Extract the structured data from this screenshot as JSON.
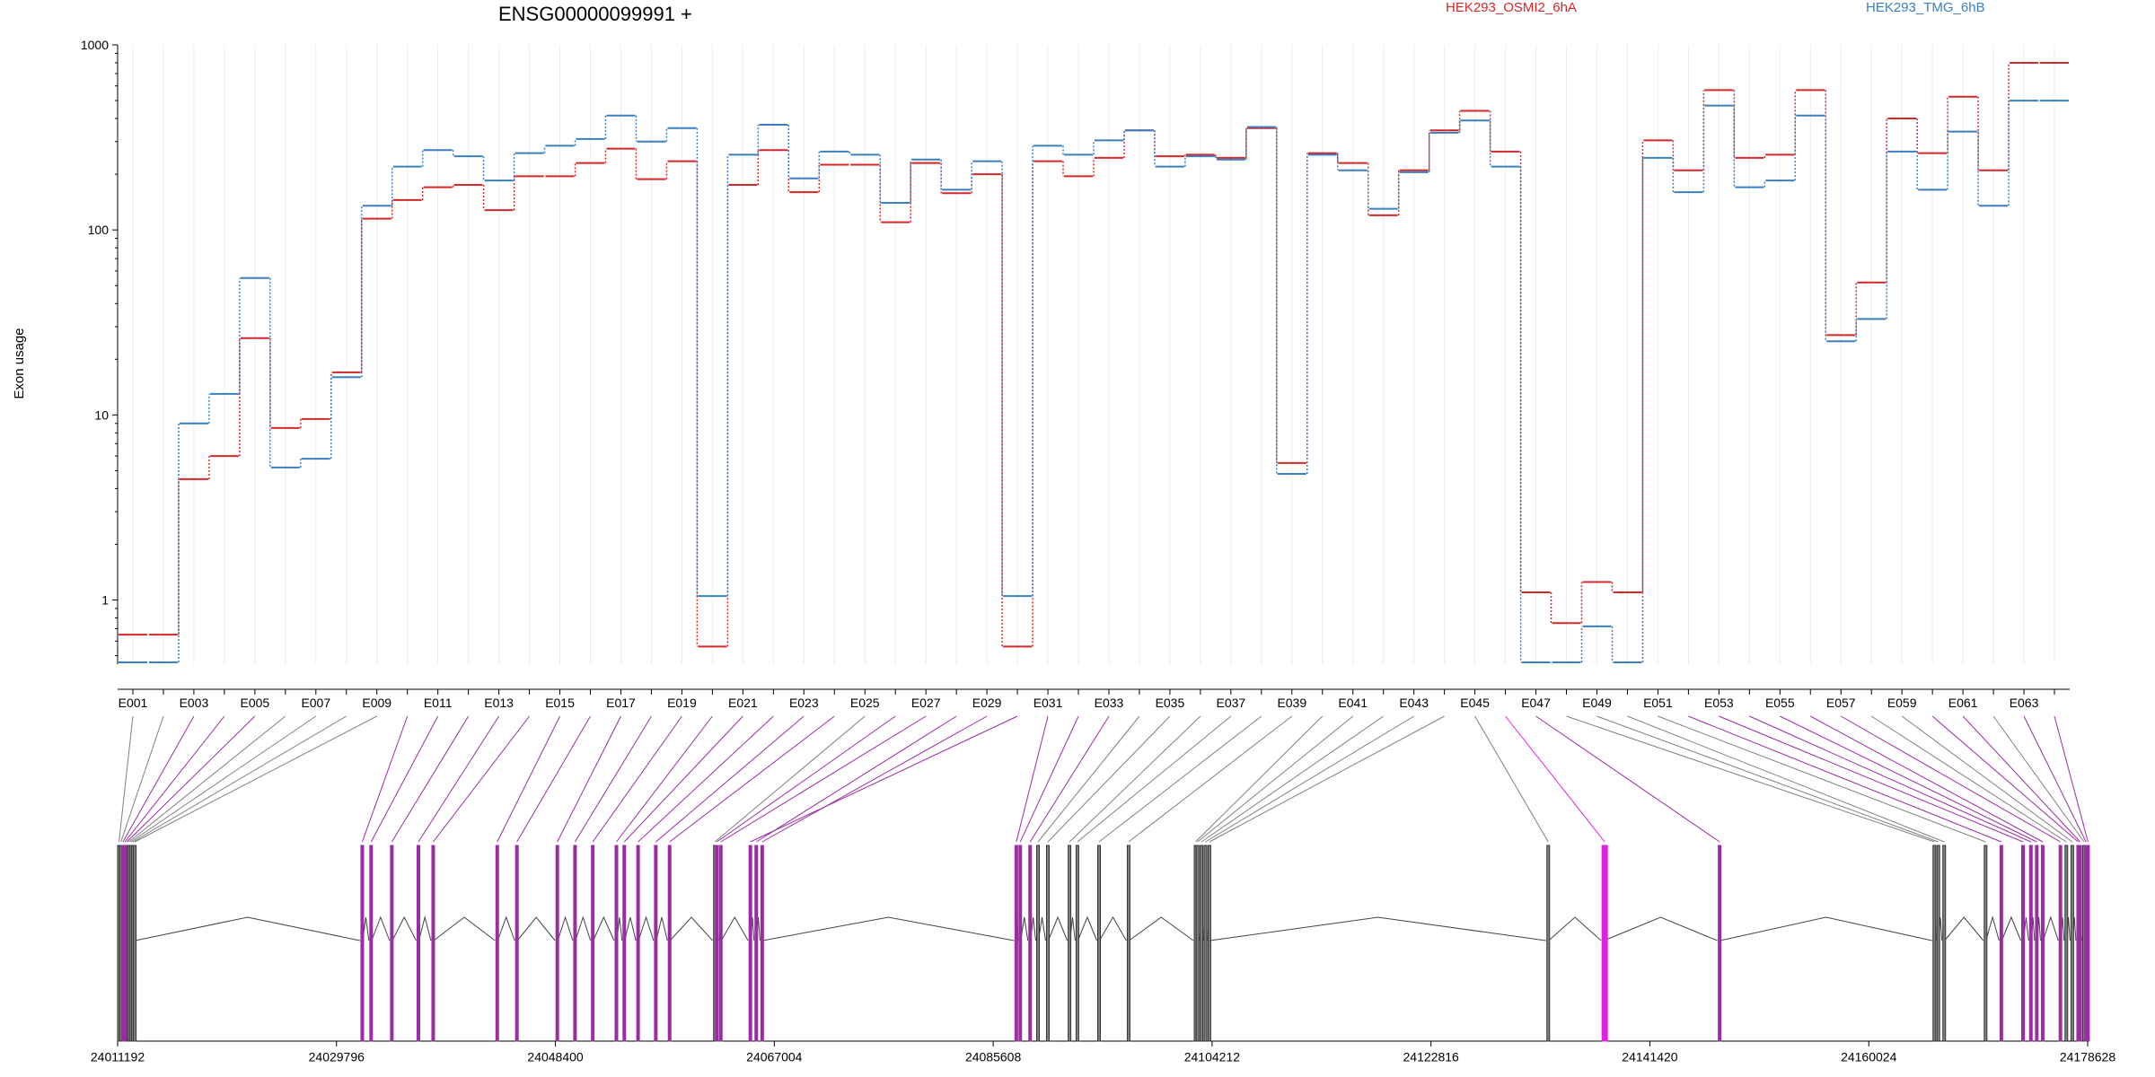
{
  "chart_data": {
    "type": "line",
    "title": "ENSG00000099991 +",
    "ylabel": "Exon usage",
    "xlabel": "",
    "yscale": "log",
    "ylim": [
      0.45,
      1000
    ],
    "y_ticks": [
      "1",
      "10",
      "100",
      "1000"
    ],
    "legend": {
      "placement": "top",
      "entries": [
        "HEK293_OSMI2_6hA",
        "HEK293_TMG_6hB"
      ]
    },
    "colors": {
      "HEK293_OSMI2_6hA": "#d62728",
      "HEK293_TMG_6hB": "#3a7fc0",
      "highlight": "#9b2ca3",
      "bright": "#e020e0",
      "plain": "#808080"
    },
    "categories": [
      "E001",
      "E002",
      "E003",
      "E004",
      "E005",
      "E006",
      "E007",
      "E008",
      "E009",
      "E010",
      "E011",
      "E012",
      "E013",
      "E014",
      "E015",
      "E016",
      "E017",
      "E018",
      "E019",
      "E020",
      "E021",
      "E022",
      "E023",
      "E024",
      "E025",
      "E026",
      "E027",
      "E028",
      "E029",
      "E030",
      "E031",
      "E032",
      "E033",
      "E034",
      "E035",
      "E036",
      "E037",
      "E038",
      "E039",
      "E040",
      "E041",
      "E042",
      "E043",
      "E044",
      "E045",
      "E046",
      "E047",
      "E048",
      "E049",
      "E050",
      "E051",
      "E052",
      "E053",
      "E054",
      "E055",
      "E056",
      "E057",
      "E058",
      "E059",
      "E060",
      "E061",
      "E062",
      "E063",
      "E064"
    ],
    "category_labels": [
      "E001",
      "",
      "E003",
      "",
      "E005",
      "",
      "E007",
      "",
      "E009",
      "",
      "E011",
      "",
      "E013",
      "",
      "E015",
      "",
      "E017",
      "",
      "E019",
      "",
      "E021",
      "",
      "E023",
      "",
      "E025",
      "",
      "E027",
      "",
      "E029",
      "",
      "E031",
      "",
      "E033",
      "",
      "E035",
      "",
      "E037",
      "",
      "E039",
      "",
      "E041",
      "",
      "E043",
      "",
      "E045",
      "",
      "E047",
      "",
      "E049",
      "",
      "E051",
      "",
      "E053",
      "",
      "E055",
      "",
      "E057",
      "",
      "E059",
      "",
      "E061",
      "",
      "E063",
      ""
    ],
    "series": [
      {
        "name": "HEK293_OSMI2_6hA",
        "values": [
          0.65,
          0.65,
          4.5,
          6,
          26,
          8.5,
          9.5,
          17,
          115,
          145,
          170,
          175,
          128,
          195,
          195,
          230,
          275,
          188,
          235,
          0.56,
          175,
          270,
          160,
          225,
          225,
          110,
          230,
          158,
          200,
          0.56,
          235,
          195,
          245,
          345,
          250,
          255,
          245,
          355,
          5.5,
          260,
          230,
          120,
          210,
          345,
          440,
          265,
          1.1,
          0.75,
          1.25,
          1.1,
          305,
          210,
          570,
          245,
          255,
          570,
          27,
          52,
          400,
          260,
          525,
          210,
          800,
          800
        ]
      },
      {
        "name": "HEK293_TMG_6hB",
        "values": [
          0.46,
          0.46,
          9,
          13,
          55,
          5.2,
          5.8,
          16,
          135,
          220,
          270,
          250,
          185,
          260,
          285,
          310,
          415,
          300,
          355,
          1.05,
          255,
          370,
          190,
          265,
          255,
          140,
          240,
          165,
          235,
          1.05,
          285,
          255,
          305,
          345,
          220,
          250,
          240,
          360,
          4.8,
          255,
          210,
          130,
          205,
          335,
          390,
          220,
          0.46,
          0.46,
          0.72,
          0.46,
          245,
          160,
          470,
          170,
          185,
          415,
          25,
          33,
          265,
          165,
          340,
          135,
          500,
          500
        ]
      }
    ],
    "exon_highlight": [
      "plain",
      "plain",
      "highlight",
      "highlight",
      "highlight",
      "plain",
      "plain",
      "plain",
      "plain",
      "highlight",
      "highlight",
      "highlight",
      "highlight",
      "highlight",
      "highlight",
      "highlight",
      "highlight",
      "highlight",
      "highlight",
      "highlight",
      "highlight",
      "highlight",
      "highlight",
      "highlight",
      "plain",
      "highlight",
      "highlight",
      "highlight",
      "highlight",
      "highlight",
      "highlight",
      "highlight",
      "highlight",
      "plain",
      "plain",
      "plain",
      "plain",
      "plain",
      "plain",
      "plain",
      "plain",
      "plain",
      "plain",
      "plain",
      "plain",
      "bright",
      "highlight",
      "plain",
      "plain",
      "plain",
      "plain",
      "highlight",
      "highlight",
      "highlight",
      "highlight",
      "highlight",
      "highlight",
      "plain",
      "plain",
      "highlight",
      "highlight",
      "plain",
      "highlight",
      "highlight"
    ],
    "genomic_axis": {
      "range": [
        24011192,
        24178628
      ],
      "tick_labels": [
        "24011192",
        "24029796",
        "24048400",
        "24067004",
        "24085608",
        "24104212",
        "24122816",
        "24141420",
        "24160024",
        "24178628"
      ]
    }
  }
}
